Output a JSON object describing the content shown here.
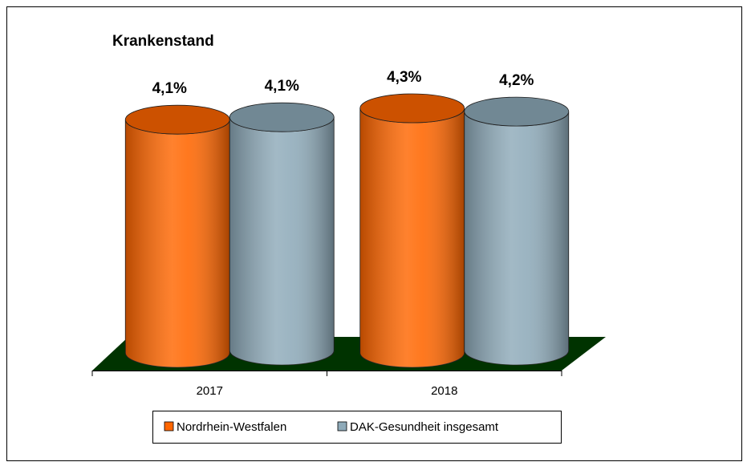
{
  "chart_data": {
    "type": "bar3d",
    "title": "Krankenstand",
    "categories": [
      "2017",
      "2018"
    ],
    "series": [
      {
        "name": "Nordrhein-Westfalen",
        "color": "#ff6600",
        "values": [
          4.1,
          4.3
        ],
        "value_labels": [
          "4,1%",
          "4,3%"
        ]
      },
      {
        "name": "DAK-Gesundheit insgesamt",
        "color": "#8eaab9",
        "values": [
          4.1,
          4.2
        ],
        "value_labels": [
          "4,1%",
          "4,2%"
        ]
      }
    ],
    "floor_color": "#003300"
  }
}
